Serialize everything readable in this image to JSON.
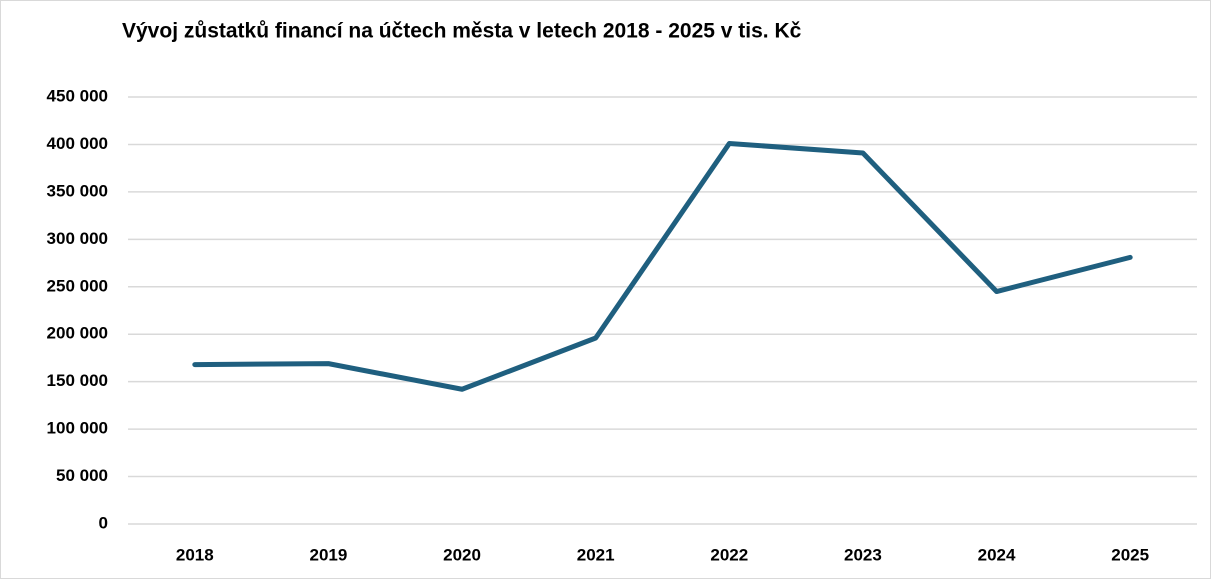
{
  "chart_data": {
    "type": "line",
    "title": "Vývoj zůstatků financí na účtech města v letech 2018 - 2025 v tis. Kč",
    "categories": [
      "2018",
      "2019",
      "2020",
      "2021",
      "2022",
      "2023",
      "2024",
      "2025"
    ],
    "values": [
      168000,
      169000,
      142000,
      196000,
      401000,
      391000,
      245000,
      281000
    ],
    "color": "#1f5f7f",
    "ylim": [
      0,
      450000
    ],
    "yticks": [
      0,
      {
        "value": 50000,
        "label": "50 000"
      },
      {
        "value": 100000,
        "label": "100 000"
      },
      {
        "value": 150000,
        "label": "150 000"
      },
      {
        "value": 200000,
        "label": "200 000"
      },
      {
        "value": 250000,
        "label": "250 000"
      },
      {
        "value": 300000,
        "label": "300 000"
      },
      {
        "value": 350000,
        "label": "350 000"
      },
      {
        "value": 400000,
        "label": "400 000"
      },
      {
        "value": 450000,
        "label": "450 000"
      }
    ],
    "grid": true
  }
}
